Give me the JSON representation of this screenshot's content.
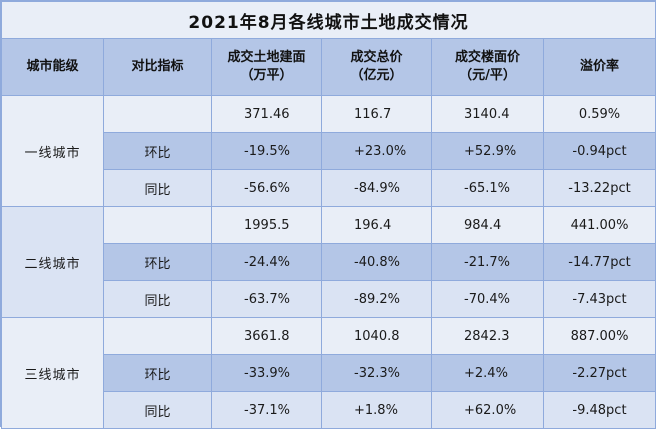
{
  "title": "2021年8月各线城市土地成交情况",
  "headers": {
    "tier": "城市能级",
    "metric": "对比指标",
    "area_line1": "成交土地建面",
    "area_line2": "（万平）",
    "total_line1": "成交总价",
    "total_line2": "（亿元）",
    "price_line1": "成交楼面价",
    "price_line2": "（元/平）",
    "premium": "溢价率"
  },
  "groups": [
    {
      "tier": "一线城市",
      "rows": [
        {
          "metric": "",
          "area": "371.46",
          "total": "116.7",
          "price": "3140.4",
          "premium": "0.59%"
        },
        {
          "metric": "环比",
          "area": "-19.5%",
          "total": "+23.0%",
          "price": "+52.9%",
          "premium": "-0.94pct"
        },
        {
          "metric": "同比",
          "area": "-56.6%",
          "total": "-84.9%",
          "price": "-65.1%",
          "premium": "-13.22pct"
        }
      ]
    },
    {
      "tier": "二线城市",
      "rows": [
        {
          "metric": "",
          "area": "1995.5",
          "total": "196.4",
          "price": "984.4",
          "premium": "441.00%"
        },
        {
          "metric": "环比",
          "area": "-24.4%",
          "total": "-40.8%",
          "price": "-21.7%",
          "premium": "-14.77pct"
        },
        {
          "metric": "同比",
          "area": "-63.7%",
          "total": "-89.2%",
          "price": "-70.4%",
          "premium": "-7.43pct"
        }
      ]
    },
    {
      "tier": "三线城市",
      "rows": [
        {
          "metric": "",
          "area": "3661.8",
          "total": "1040.8",
          "price": "2842.3",
          "premium": "887.00%"
        },
        {
          "metric": "环比",
          "area": "-33.9%",
          "total": "-32.3%",
          "price": "+2.4%",
          "premium": "-2.27pct"
        },
        {
          "metric": "同比",
          "area": "-37.1%",
          "total": "+1.8%",
          "price": "+62.0%",
          "premium": "-9.48pct"
        }
      ]
    }
  ]
}
